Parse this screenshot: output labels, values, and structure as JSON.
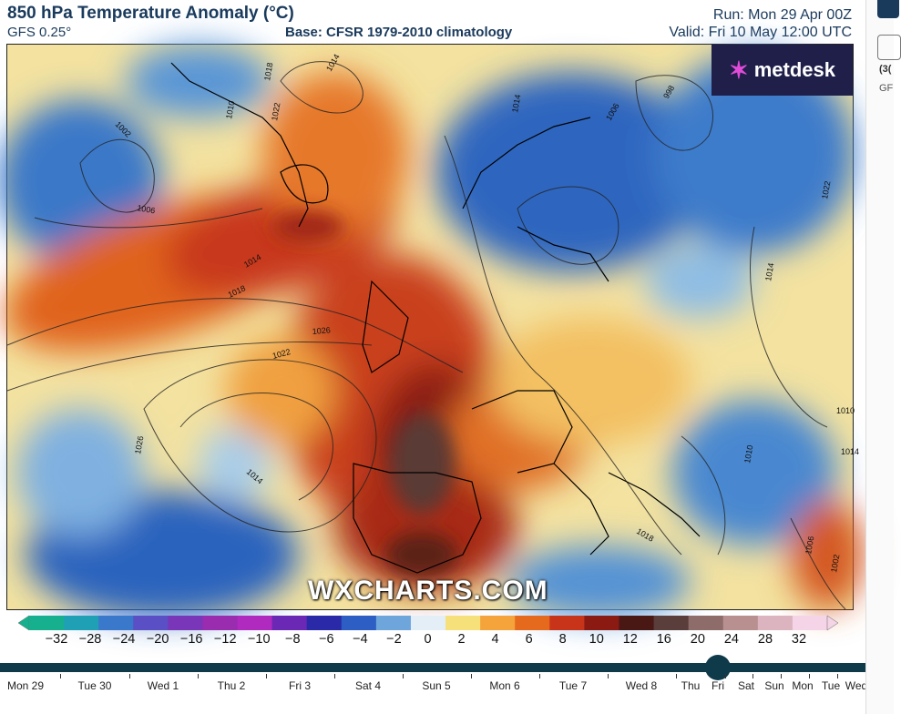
{
  "header": {
    "title": "850 hPa Temperature Anomaly (°C)",
    "model": "GFS 0.25°",
    "base": "Base: CFSR 1979-2010 climatology",
    "run": "Run: Mon 29 Apr 00Z",
    "valid": "Valid: Fri 10 May 12:00 UTC"
  },
  "branding": {
    "logo_text": "metdesk",
    "watermark": "WXCHARTS.COM"
  },
  "isobar_labels": [
    "1002",
    "1006",
    "1014",
    "1018",
    "1022",
    "1026",
    "1010",
    "1018",
    "1022",
    "1014",
    "1026",
    "1014",
    "1006",
    "998",
    "1014",
    "1022",
    "1014",
    "1018",
    "1010",
    "1006",
    "1002",
    "1010",
    "1014"
  ],
  "colorbar": {
    "labels": [
      "−32",
      "−28",
      "−24",
      "−20",
      "−16",
      "−12",
      "−10",
      "−8",
      "−6",
      "−4",
      "−2",
      "0",
      "2",
      "4",
      "6",
      "8",
      "10",
      "12",
      "16",
      "20",
      "24",
      "28",
      "32"
    ],
    "colors": [
      "#16b08e",
      "#1fa0b4",
      "#3a78cc",
      "#5a4fc4",
      "#7a36b8",
      "#9a2cb0",
      "#b02ac0",
      "#6a28b4",
      "#2a2aa8",
      "#2c5ec4",
      "#6ea6dc",
      "#e4eef6",
      "#f6e07a",
      "#f4a43a",
      "#e66a1e",
      "#c8341a",
      "#8a1a12",
      "#4a1814",
      "#5a3e3c",
      "#8e6c6a",
      "#b89090",
      "#dcb4c0",
      "#f4d4e6"
    ]
  },
  "timeline": {
    "days": [
      "Mon 29",
      "Tue 30",
      "Wed 1",
      "Thu 2",
      "Fri 3",
      "Sat 4",
      "Sun 5",
      "Mon 6",
      "Tue 7",
      "Wed 8",
      "Thu",
      "Fri",
      "Sat",
      "Sun",
      "Mon",
      "Tue",
      "Wed"
    ],
    "selected": "Fri"
  },
  "sidebar": {
    "text1": "(3(",
    "text2": "GF"
  }
}
